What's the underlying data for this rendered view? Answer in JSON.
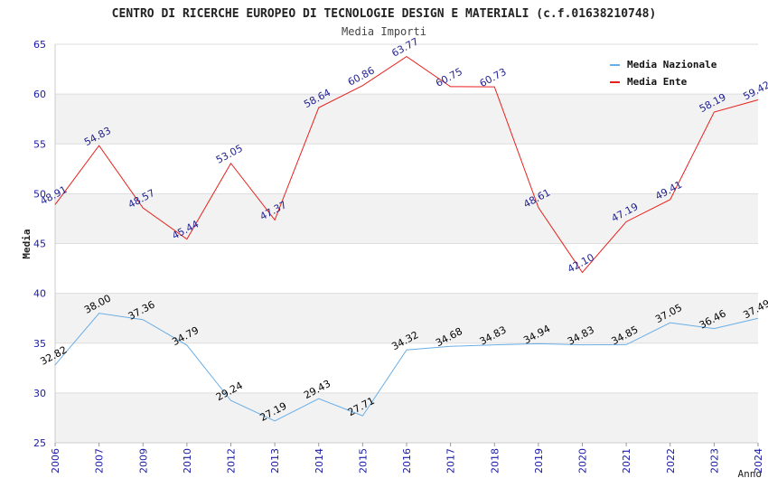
{
  "chart_data": {
    "type": "line",
    "title": "CENTRO DI RICERCHE EUROPEO DI TECNOLOGIE DESIGN E MATERIALI (c.f.01638210748)",
    "subtitle": "Media Importi",
    "xlabel": "Anno",
    "ylabel": "Media",
    "ylim": [
      25,
      65
    ],
    "yticks": [
      25,
      30,
      35,
      40,
      45,
      50,
      55,
      60,
      65
    ],
    "grid": true,
    "legend_position": "top-right",
    "categories": [
      "2006",
      "2007",
      "2009",
      "2010",
      "2012",
      "2013",
      "2014",
      "2015",
      "2016",
      "2017",
      "2018",
      "2019",
      "2020",
      "2021",
      "2022",
      "2023",
      "2024"
    ],
    "series": [
      {
        "name": "Media Nazionale",
        "color": "#6aaee6",
        "label_color": "#000000",
        "values": [
          32.82,
          38.0,
          37.36,
          34.79,
          29.24,
          27.19,
          29.43,
          27.71,
          34.32,
          34.68,
          34.83,
          34.94,
          34.83,
          34.85,
          37.05,
          36.46,
          37.49
        ],
        "labels": [
          "32.82",
          "38.00",
          "37.36",
          "34.79",
          "29.24",
          "27.19",
          "29.43",
          "27.71",
          "34.32",
          "34.68",
          "34.83",
          "34.94",
          "34.83",
          "34.85",
          "37.05",
          "36.46",
          "37.49"
        ]
      },
      {
        "name": "Media Ente",
        "color": "#e8201c",
        "label_color": "#1f1f8f",
        "values": [
          48.91,
          54.83,
          48.57,
          45.44,
          53.05,
          47.37,
          58.64,
          60.86,
          63.77,
          60.75,
          60.73,
          48.61,
          42.1,
          47.19,
          49.41,
          58.19,
          59.42
        ],
        "labels": [
          "48.91",
          "54.83",
          "48.57",
          "45.44",
          "53.05",
          "47.37",
          "58.64",
          "60.86",
          "63.77",
          "60.75",
          "60.73",
          "48.61",
          "42.10",
          "47.19",
          "49.41",
          "58.19",
          "59.42"
        ]
      }
    ],
    "colors": {
      "axis_tick_labels": "#1a1aa6",
      "band_gray": "#f2f2f2",
      "grid": "#dddddd"
    }
  }
}
